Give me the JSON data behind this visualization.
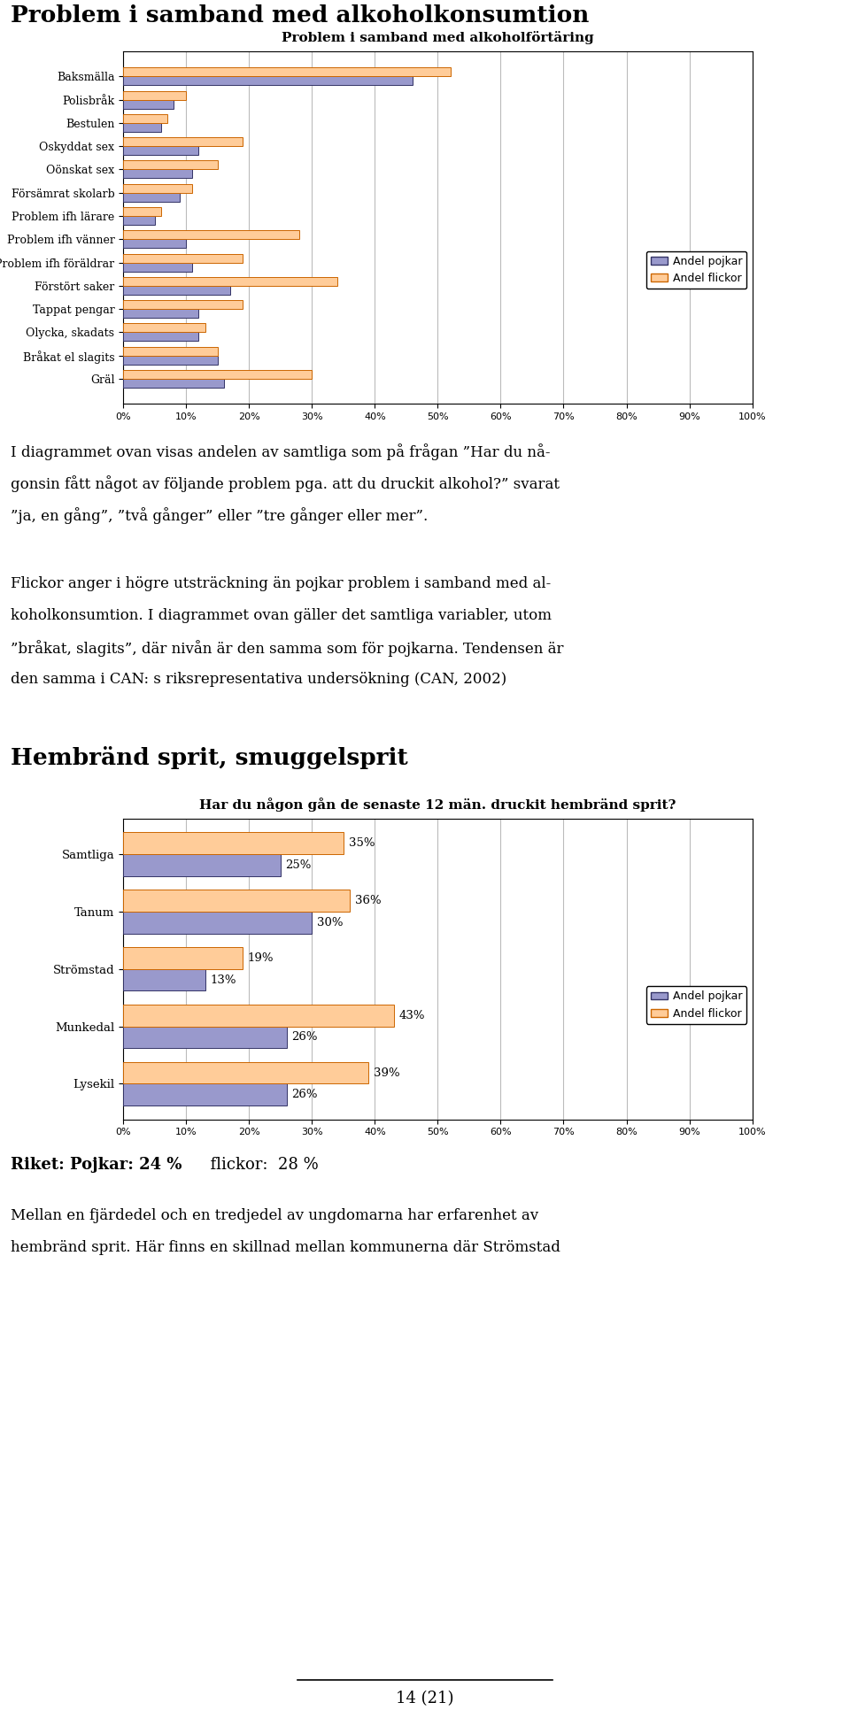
{
  "page_title1": "Problem i samband med alkoholkonsumtion",
  "chart1_title": "Problem i samband med alkoholförtäring",
  "chart1_categories": [
    "Baksmälla",
    "Polisbråk",
    "Bestulen",
    "Oskyddat sex",
    "Oönskat sex",
    "Försämrat skolarb",
    "Problem ifh lärare",
    "Problem ifh vänner",
    "Problem ifh föräldrar",
    "Förstört saker",
    "Tappat pengar",
    "Olycka, skadats",
    "Bråkat el slagits",
    "Gräl"
  ],
  "chart1_pojkar": [
    46,
    8,
    6,
    12,
    11,
    9,
    5,
    10,
    11,
    17,
    12,
    12,
    15,
    16
  ],
  "chart1_flickor": [
    52,
    10,
    7,
    19,
    15,
    11,
    6,
    28,
    19,
    34,
    19,
    13,
    15,
    30
  ],
  "chart2_title": "Har du någon gån de senaste 12 män. druckit hembränd sprit?",
  "page_title2": "Hembränd sprit, smuggelsprit",
  "chart2_categories": [
    "Samtliga",
    "Tanum",
    "Strömstad",
    "Munkedal",
    "Lysekil"
  ],
  "chart2_pojkar": [
    25,
    30,
    13,
    26,
    26
  ],
  "chart2_flickor": [
    35,
    36,
    19,
    43,
    39
  ],
  "color_pojkar": "#9999CC",
  "color_flickor": "#FFCC99",
  "color_pojkar_border": "#333366",
  "color_flickor_border": "#CC6600",
  "legend_pojkar": "Andel pojkar",
  "legend_flickor": "Andel flickor",
  "text1_lines": [
    "I diagrammet ovan visas andelen av samtliga som på frågan ”Har du nå-",
    "gonsin fått något av följande problem pga. att du druckit alkohol?” svarat",
    "”ja, en gång”, ”två gånger” eller ”tre gånger eller mer”."
  ],
  "text2_lines": [
    "Flickor anger i högre utsträckning än pojkar problem i samband med al-",
    "koholkonsumtion. I diagrammet ovan gäller det samtliga variabler, utom",
    "”bråkat, slagits”, där nivån är den samma som för pojkarna. Tendensen är",
    "den samma i CAN: s riksrepresentativa undersökning (CAN, 2002)"
  ],
  "riket_text_bold": "Riket: Pojkar: 24 %",
  "riket_text_normal": "          flickor:  28 %",
  "bottom_text_lines": [
    "Mellan en fjärdedel och en tredjedel av ungdomarna har erfarenhet av",
    "hembränd sprit. Här finns en skillnad mellan kommunerna där Strömstad"
  ],
  "page_num": "14 (21)"
}
